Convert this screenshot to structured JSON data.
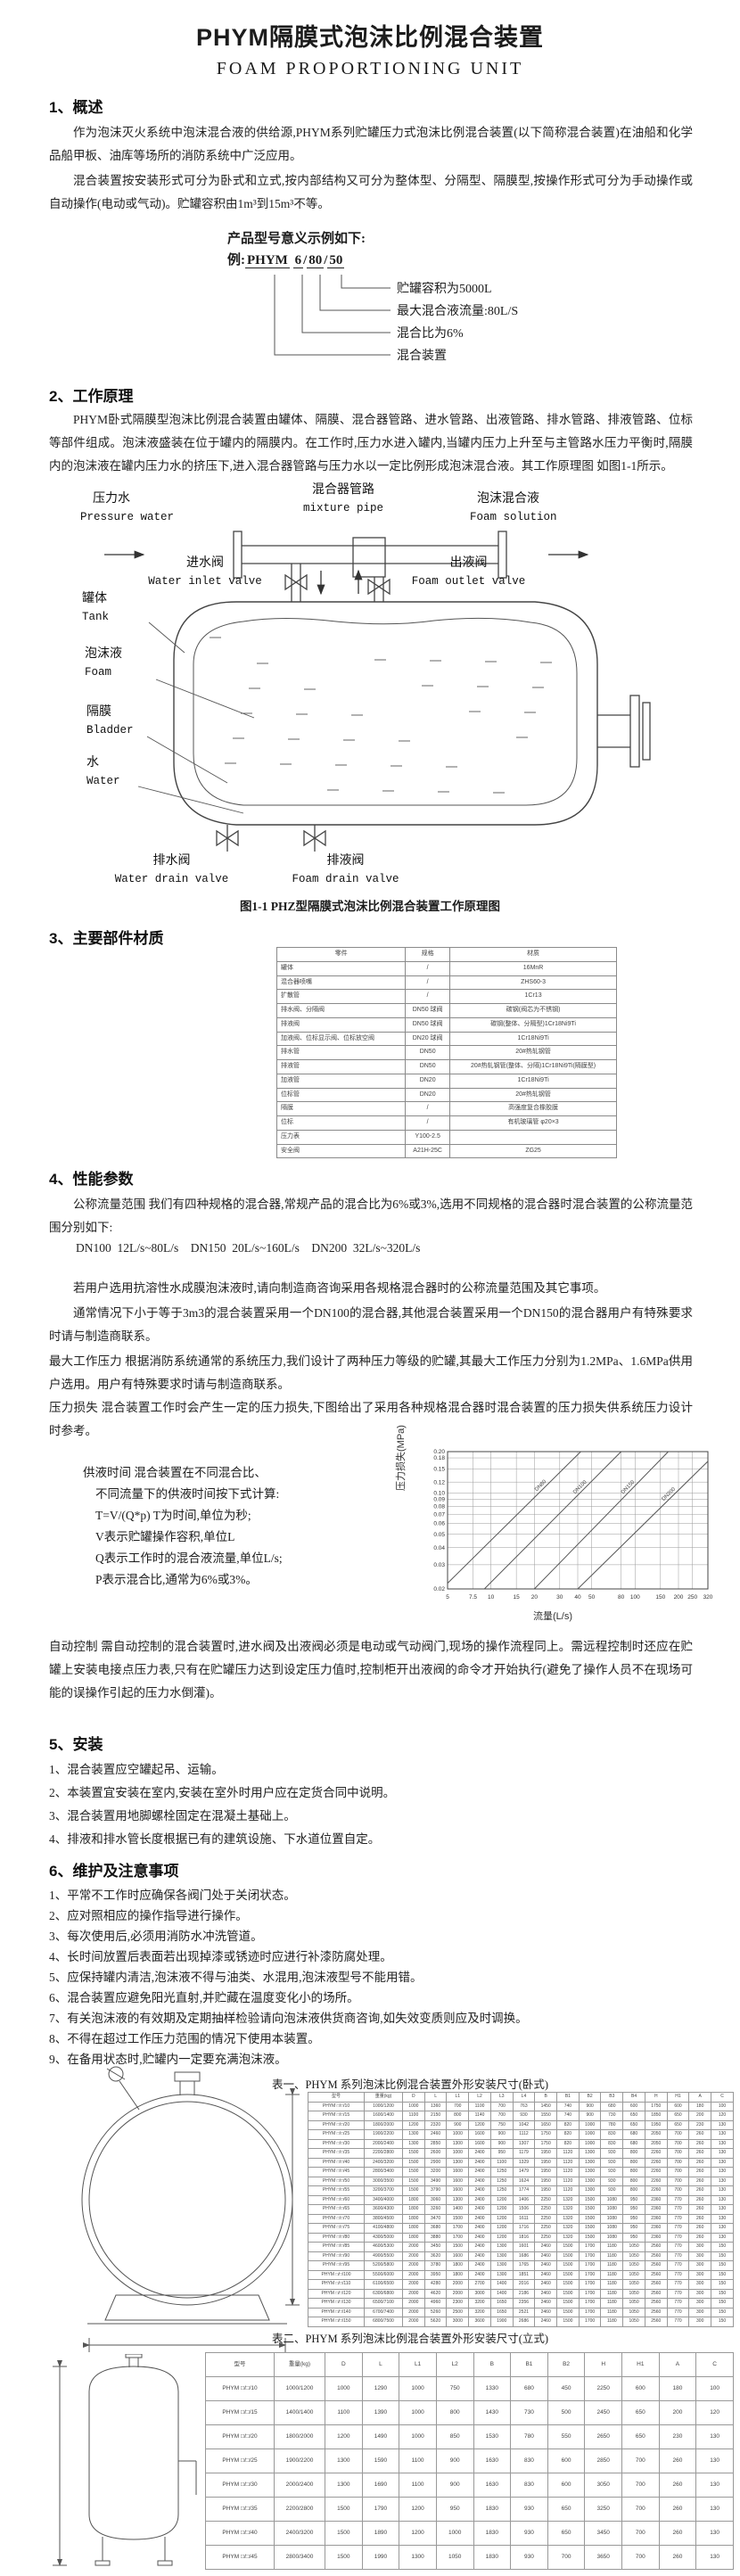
{
  "page": {
    "title": "PHYM隔膜式泡沫比例混合装置",
    "subtitle": "FOAM PROPORTIONING UNIT"
  },
  "s1": {
    "heading": "1、概述",
    "para1": "作为泡沫灭火系统中泡沫混合液的供给源,PHYM系列贮罐压力式泡沫比例混合装置(以下简称混合装置)在油船和化学品船甲板、油库等场所的消防系统中广泛应用。",
    "para2": "混合装置按安装形式可分为卧式和立式,按内部结构又可分为整体型、分隔型、隔膜型,按操作形式可分为手动操作或自动操作(电动或气动)。贮罐容积由1m³到15m³不等。"
  },
  "model": {
    "intro": "产品型号意义示例如下:",
    "example_label": "例:",
    "code_parts": [
      "PHYM",
      "6",
      "80",
      "50"
    ],
    "separator": "/",
    "callouts": [
      "贮罐容积为5000L",
      "最大混合液流量:80L/S",
      "混合比为6%",
      "混合装置"
    ]
  },
  "s2": {
    "heading": "2、工作原理",
    "para": "PHYM卧式隔膜型泡沫比例混合装置由罐体、隔膜、混合器管路、进水管路、出液管路、排水管路、排液管路、位标等部件组成。泡沫液盛装在位于罐内的隔膜内。在工作时,压力水进入罐内,当罐内压力上升至与主管路水压力平衡时,隔膜内的泡沫液在罐内压力水的挤压下,进入混合器管路与压力水以一定比例形成泡沫混合液。其工作原理图 如图1-1所示。"
  },
  "diagram": {
    "caption": "图1-1 PHZ型隔膜式泡沫比例混合装置工作原理图",
    "labels": {
      "pressure_water": {
        "zh": "压力水",
        "en": "Pressure water"
      },
      "mixture_pipe": {
        "zh": "混合器管路",
        "en": "mixture pipe"
      },
      "foam_solution": {
        "zh": "泡沫混合液",
        "en": "Foam solution"
      },
      "water_inlet_valve": {
        "zh": "进水阀",
        "en": "Water inlet valve"
      },
      "foam_outlet_valve": {
        "zh": "出液阀",
        "en": "Foam outlet valve"
      },
      "tank": {
        "zh": "罐体",
        "en": "Tank"
      },
      "foam": {
        "zh": "泡沫液",
        "en": "Foam"
      },
      "bladder": {
        "zh": "隔膜",
        "en": "Bladder"
      },
      "water": {
        "zh": "水",
        "en": "Water"
      },
      "water_drain_valve": {
        "zh": "排水阀",
        "en": "Water drain valve"
      },
      "foam_drain_valve": {
        "zh": "排液阀",
        "en": "Foam drain valve"
      }
    }
  },
  "s3": {
    "heading": "3、主要部件材质",
    "materials_table": {
      "headers": [
        "零件",
        "规格",
        "材质"
      ],
      "rows": [
        [
          "罐体",
          "/",
          "16MnR"
        ],
        [
          "混合器喷嘴",
          "/",
          "ZHS60-3"
        ],
        [
          "扩散管",
          "/",
          "1Cr13"
        ],
        [
          "排水阀、分隔阀",
          "DN50 球阀",
          "碳钢(阀芯为不锈钢)"
        ],
        [
          "排液阀",
          "DN50 球阀",
          "碳钢(整体、分隔型)1Cr18Ni9Ti"
        ],
        [
          "加液阀、位标显示阀、位标放空阀",
          "DN20 球阀",
          "1Cr18Ni9Ti"
        ],
        [
          "排水管",
          "DN50",
          "20#热轧钢管"
        ],
        [
          "排液管",
          "DN50",
          "20#热轧钢管(整体、分隔)1Cr18Ni9Ti(隔膜型)"
        ],
        [
          "加液管",
          "DN20",
          "1Cr18Ni9Ti"
        ],
        [
          "位标管",
          "DN20",
          "20#热轧钢管"
        ],
        [
          "隔膜",
          "/",
          "高强度复合橡胶膜"
        ],
        [
          "位标",
          "/",
          "有机玻璃管 φ20×3"
        ],
        [
          "压力表",
          "Y100-2.5",
          ""
        ],
        [
          "安全阀",
          "A21H-25C",
          "ZG25"
        ]
      ]
    }
  },
  "s4": {
    "heading": "4、性能参数",
    "para_flow": "公称流量范围 我们有四种规格的混合器,常规产品的混合比为6%或3%,选用不同规格的混合器时混合装置的公称流量范围分别如下:",
    "flow_line": "DN100  12L/s~80L/s    DN150  20L/s~160L/s    DN200  32L/s~320L/s",
    "para_afff": "若用户选用抗溶性水成膜泡沫液时,请向制造商咨询采用各规格混合器时的公称流量范围及其它事项。",
    "para_usual": "通常情况下小于等于3m3的混合装置采用一个DN100的混合器,其他混合装置采用一个DN150的混合器用户有特殊要求时请与制造商联系。",
    "para_pressure": "最大工作压力 根据消防系统通常的系统压力,我们设计了两种压力等级的贮罐,其最大工作压力分别为1.2MPa、1.6MPa供用户选用。用户有特殊要求时请与制造商联系。",
    "para_loss": "压力损失 混合装置工作时会产生一定的压力损失,下图给出了采用各种规格混合器时混合装置的压力损失供系统压力设计时参考。",
    "supply_time_lines": [
      "供液时间 混合装置在不同混合比、",
      "不同流量下的供液时间按下式计算:",
      "T=V/(Q*p)   T为时间,单位为秒;",
      "V表示贮罐操作容积,单位L",
      "Q表示工作时的混合液流量,单位L/s;",
      "P表示混合比,通常为6%或3%。"
    ],
    "para_auto": "自动控制 需自动控制的混合装置时,进水阀及出液阀必须是电动或气动阀门,现场的操作流程同上。需远程控制时还应在贮罐上安装电接点压力表,只有在贮罐压力达到设定压力值时,控制柜开出液阀的命令才开始执行(避免了操作人员不在现场可能的误操作引起的压力水倒灌)。"
  },
  "chart_data": {
    "type": "line",
    "title": "",
    "xlabel": "流量(L/s)",
    "ylabel": "压力损失(MPa)",
    "x_scale": "log",
    "y_scale": "log",
    "xlim": [
      5,
      320
    ],
    "ylim": [
      0.02,
      0.2
    ],
    "x_ticks": [
      5,
      7.5,
      10,
      15,
      20,
      30,
      40,
      50,
      80,
      100,
      150,
      200,
      250,
      320
    ],
    "y_ticks": [
      0.02,
      0.03,
      0.04,
      0.05,
      0.06,
      0.07,
      0.08,
      0.09,
      0.1,
      0.12,
      0.15,
      0.18,
      0.2
    ],
    "grid": true,
    "legend_position": "on-line-labels",
    "series": [
      {
        "name": "DN80",
        "points": [
          [
            5,
            0.022
          ],
          [
            42,
            0.2
          ]
        ]
      },
      {
        "name": "DN100",
        "points": [
          [
            9,
            0.02
          ],
          [
            80,
            0.2
          ]
        ]
      },
      {
        "name": "DN150",
        "points": [
          [
            20,
            0.02
          ],
          [
            170,
            0.2
          ]
        ]
      },
      {
        "name": "DN200",
        "points": [
          [
            40,
            0.02
          ],
          [
            320,
            0.17
          ]
        ]
      }
    ]
  },
  "s5": {
    "heading": "5、安装",
    "items": [
      "1、混合装置应空罐起吊、运输。",
      "2、本装置宜安装在室内,安装在室外时用户应在定货合同中说明。",
      "3、混合装置用地脚螺栓固定在混凝土基础上。",
      "4、排液和排水管长度根据已有的建筑设施、下水道位置自定。"
    ]
  },
  "s6": {
    "heading": "6、维护及注意事项",
    "items": [
      "1、平常不工作时应确保各阀门处于关闭状态。",
      "2、应对照相应的操作指导进行操作。",
      "3、每次使用后,必须用消防水冲洗管道。",
      "4、长时间放置后表面若出现掉漆或锈迹时应进行补漆防腐处理。",
      "5、应保持罐内清洁,泡沫液不得与油类、水混用,泡沫液型号不能用错。",
      "6、混合装置应避免阳光直射,并贮藏在温度变化小的场所。",
      "7、有关泡沫液的有效期及定期抽样检验请向泡沫液供货商咨询,如失效变质则应及时调换。",
      "8、不得在超过工作压力范围的情况下使用本装置。",
      "9、在备用状态时,贮罐内一定要充满泡沫液。"
    ]
  },
  "table1": {
    "caption": "表一、PHYM 系列泡沫比例混合装置外形安装尺寸(卧式)",
    "headers": [
      "型号",
      "重量(kg)",
      "D",
      "L",
      "L1",
      "L2",
      "L3",
      "L4",
      "B",
      "B1",
      "B2",
      "B3",
      "B4",
      "H",
      "H1",
      "A",
      "C"
    ],
    "rows": [
      [
        "PHYM □/□/10",
        "1000/1200",
        "1000",
        "1360",
        "700",
        "1100",
        "700",
        "763",
        "1450",
        "740",
        "900",
        "680",
        "600",
        "1750",
        "600",
        "180",
        "100"
      ],
      [
        "PHYM □/□/15",
        "1600/1400",
        "1100",
        "2150",
        "800",
        "1140",
        "700",
        "930",
        "1550",
        "740",
        "900",
        "730",
        "650",
        "1850",
        "650",
        "200",
        "120"
      ],
      [
        "PHYM □/□/20",
        "1800/2000",
        "1200",
        "2320",
        "900",
        "1200",
        "750",
        "1042",
        "1650",
        "820",
        "1000",
        "780",
        "650",
        "1950",
        "650",
        "230",
        "130"
      ],
      [
        "PHYM □/□/25",
        "1900/2200",
        "1300",
        "2460",
        "1000",
        "1600",
        "900",
        "1112",
        "1750",
        "820",
        "1000",
        "830",
        "680",
        "2050",
        "700",
        "260",
        "130"
      ],
      [
        "PHYM □/□/30",
        "2000/2400",
        "1300",
        "2850",
        "1300",
        "1600",
        "900",
        "1307",
        "1750",
        "820",
        "1000",
        "830",
        "680",
        "2050",
        "700",
        "260",
        "130"
      ],
      [
        "PHYM □/□/35",
        "2200/2800",
        "1500",
        "2600",
        "1000",
        "2400",
        "950",
        "1179",
        "1950",
        "1120",
        "1300",
        "930",
        "800",
        "2260",
        "700",
        "260",
        "130"
      ],
      [
        "PHYM □/□/40",
        "2400/3200",
        "1500",
        "2900",
        "1300",
        "2400",
        "1100",
        "1329",
        "1950",
        "1120",
        "1300",
        "930",
        "800",
        "2260",
        "700",
        "260",
        "130"
      ],
      [
        "PHYM □/□/45",
        "2800/3400",
        "1500",
        "3200",
        "1600",
        "2400",
        "1250",
        "1479",
        "1950",
        "1120",
        "1300",
        "930",
        "800",
        "2260",
        "700",
        "260",
        "130"
      ],
      [
        "PHYM □/□/50",
        "3000/3500",
        "1500",
        "3490",
        "1600",
        "2400",
        "1250",
        "1624",
        "1950",
        "1120",
        "1300",
        "930",
        "800",
        "2260",
        "700",
        "260",
        "130"
      ],
      [
        "PHYM □/□/55",
        "3200/3700",
        "1500",
        "3790",
        "1600",
        "2400",
        "1250",
        "1774",
        "1950",
        "1120",
        "1300",
        "930",
        "800",
        "2260",
        "700",
        "260",
        "130"
      ],
      [
        "PHYM □/□/60",
        "3400/4000",
        "1800",
        "3060",
        "1300",
        "2400",
        "1200",
        "1406",
        "2250",
        "1320",
        "1500",
        "1080",
        "950",
        "2360",
        "770",
        "260",
        "130"
      ],
      [
        "PHYM □/□/65",
        "3600/4300",
        "1800",
        "3260",
        "1400",
        "2400",
        "1200",
        "1506",
        "2250",
        "1320",
        "1500",
        "1080",
        "950",
        "2360",
        "770",
        "260",
        "130"
      ],
      [
        "PHYM □/□/70",
        "3800/4500",
        "1800",
        "3470",
        "1500",
        "2400",
        "1200",
        "1611",
        "2250",
        "1320",
        "1500",
        "1080",
        "950",
        "2360",
        "770",
        "260",
        "130"
      ],
      [
        "PHYM □/□/75",
        "4100/4800",
        "1800",
        "3680",
        "1700",
        "2400",
        "1200",
        "1716",
        "2250",
        "1320",
        "1500",
        "1080",
        "950",
        "2360",
        "770",
        "260",
        "130"
      ],
      [
        "PHYM □/□/80",
        "4300/5000",
        "1800",
        "3880",
        "1700",
        "2400",
        "1200",
        "1816",
        "2250",
        "1320",
        "1500",
        "1080",
        "950",
        "2360",
        "770",
        "260",
        "130"
      ],
      [
        "PHYM □/□/85",
        "4600/5300",
        "2000",
        "3450",
        "1500",
        "2400",
        "1300",
        "1601",
        "2460",
        "1500",
        "1700",
        "1180",
        "1050",
        "2560",
        "770",
        "300",
        "150"
      ],
      [
        "PHYM □/□/90",
        "4900/5500",
        "2000",
        "3620",
        "1600",
        "2400",
        "1300",
        "1686",
        "2460",
        "1500",
        "1700",
        "1180",
        "1050",
        "2560",
        "770",
        "300",
        "150"
      ],
      [
        "PHYM □/□/95",
        "5200/5800",
        "2000",
        "3780",
        "1800",
        "2400",
        "1300",
        "1765",
        "2460",
        "1500",
        "1700",
        "1180",
        "1050",
        "2560",
        "770",
        "300",
        "150"
      ],
      [
        "PHYM □/□/100",
        "5500/6000",
        "2000",
        "3950",
        "1800",
        "2400",
        "1300",
        "1851",
        "2460",
        "1500",
        "1700",
        "1180",
        "1050",
        "2560",
        "770",
        "300",
        "150"
      ],
      [
        "PHYM □/□/110",
        "6100/6500",
        "2000",
        "4280",
        "2000",
        "2700",
        "1400",
        "2016",
        "2460",
        "1500",
        "1700",
        "1180",
        "1050",
        "2560",
        "770",
        "300",
        "150"
      ],
      [
        "PHYM □/□/120",
        "6300/6800",
        "2000",
        "4620",
        "2000",
        "3000",
        "1400",
        "2186",
        "2460",
        "1500",
        "1700",
        "1180",
        "1050",
        "2560",
        "770",
        "300",
        "150"
      ],
      [
        "PHYM □/□/130",
        "6500/7100",
        "2000",
        "4960",
        "2300",
        "3200",
        "1650",
        "2356",
        "2460",
        "1500",
        "1700",
        "1180",
        "1050",
        "2560",
        "770",
        "300",
        "150"
      ],
      [
        "PHYM □/□/140",
        "6700/7400",
        "2000",
        "5260",
        "2500",
        "3200",
        "1650",
        "2521",
        "2460",
        "1500",
        "1700",
        "1180",
        "1050",
        "2560",
        "770",
        "300",
        "150"
      ],
      [
        "PHYM □/□/150",
        "6800/7500",
        "2000",
        "5620",
        "3000",
        "3600",
        "1900",
        "2686",
        "2460",
        "1500",
        "1700",
        "1180",
        "1050",
        "2560",
        "770",
        "300",
        "150"
      ]
    ]
  },
  "table2": {
    "caption": "表二、PHYM 系列泡沫比例混合装置外形安装尺寸(立式)",
    "headers": [
      "型号",
      "重量(kg)",
      "D",
      "L",
      "L1",
      "L2",
      "B",
      "B1",
      "B2",
      "H",
      "H1",
      "A",
      "C"
    ],
    "rows": [
      [
        "PHYM □/□/10",
        "1000/1200",
        "1000",
        "1290",
        "1000",
        "750",
        "1330",
        "680",
        "450",
        "2250",
        "600",
        "180",
        "100"
      ],
      [
        "PHYM □/□/15",
        "1400/1400",
        "1100",
        "1390",
        "1000",
        "800",
        "1430",
        "730",
        "500",
        "2450",
        "650",
        "200",
        "120"
      ],
      [
        "PHYM □/□/20",
        "1800/2000",
        "1200",
        "1490",
        "1000",
        "850",
        "1530",
        "780",
        "550",
        "2650",
        "650",
        "230",
        "130"
      ],
      [
        "PHYM □/□/25",
        "1900/2200",
        "1300",
        "1590",
        "1100",
        "900",
        "1630",
        "830",
        "600",
        "2850",
        "700",
        "260",
        "130"
      ],
      [
        "PHYM □/□/30",
        "2000/2400",
        "1300",
        "1690",
        "1100",
        "900",
        "1630",
        "830",
        "600",
        "3050",
        "700",
        "260",
        "130"
      ],
      [
        "PHYM □/□/35",
        "2200/2800",
        "1500",
        "1790",
        "1200",
        "950",
        "1830",
        "930",
        "650",
        "3250",
        "700",
        "260",
        "130"
      ],
      [
        "PHYM □/□/40",
        "2400/3200",
        "1500",
        "1890",
        "1200",
        "1000",
        "1830",
        "930",
        "650",
        "3450",
        "700",
        "260",
        "130"
      ],
      [
        "PHYM □/□/45",
        "2800/3400",
        "1500",
        "1990",
        "1300",
        "1050",
        "1830",
        "930",
        "700",
        "3650",
        "700",
        "260",
        "130"
      ]
    ]
  }
}
